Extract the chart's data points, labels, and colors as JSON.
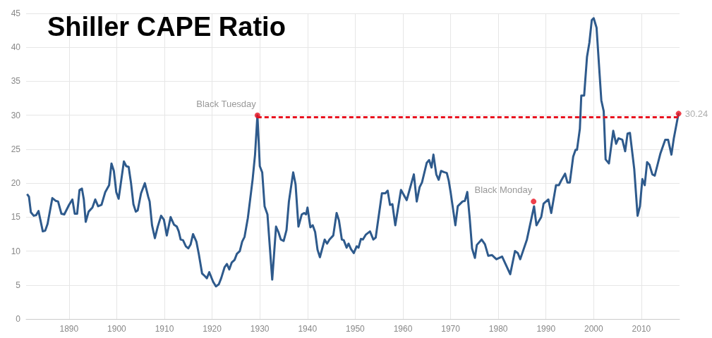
{
  "chart_data": {
    "type": "line",
    "title": "Shiller CAPE Ratio",
    "xlim": [
      1881,
      2018
    ],
    "xticks": [
      1890,
      1900,
      1910,
      1920,
      1930,
      1940,
      1950,
      1960,
      1970,
      1980,
      1990,
      2000,
      2010
    ],
    "ylim": [
      0,
      45
    ],
    "yticks": [
      0,
      5,
      10,
      15,
      20,
      25,
      30,
      35,
      40,
      45
    ],
    "grid": true,
    "annotations": [
      {
        "text": "Black Tuesday",
        "x": 1929.5,
        "y": 30.0
      },
      {
        "text": "Black Monday",
        "x": 1987.4,
        "y": 17.3
      }
    ],
    "series": [
      {
        "color": "#2e5a8c",
        "marker": "none",
        "line_style": "solid",
        "x": [
          1881.2,
          1881.6,
          1882.0,
          1882.6,
          1883.1,
          1883.6,
          1884.5,
          1885.0,
          1885.5,
          1886.5,
          1887.2,
          1887.7,
          1888.4,
          1889.0,
          1890.0,
          1890.7,
          1891.2,
          1891.7,
          1892.2,
          1892.7,
          1893.1,
          1893.5,
          1894.1,
          1894.9,
          1895.5,
          1896.1,
          1896.8,
          1897.6,
          1898.4,
          1898.9,
          1899.4,
          1899.9,
          1900.4,
          1901.0,
          1901.5,
          1902.0,
          1902.5,
          1903.0,
          1903.5,
          1904.0,
          1904.4,
          1905.1,
          1905.9,
          1906.6,
          1906.9,
          1907.4,
          1908.0,
          1908.6,
          1909.3,
          1909.9,
          1910.5,
          1911.3,
          1912.0,
          1912.6,
          1913.0,
          1913.4,
          1913.9,
          1914.5,
          1915.0,
          1915.5,
          1916.0,
          1916.7,
          1917.2,
          1917.9,
          1918.5,
          1918.9,
          1919.4,
          1920.2,
          1920.8,
          1921.4,
          1921.9,
          1922.6,
          1923.1,
          1923.6,
          1924.1,
          1924.7,
          1925.2,
          1925.8,
          1926.3,
          1926.8,
          1927.5,
          1928.5,
          1929.0,
          1929.5,
          1930.0,
          1930.5,
          1931.0,
          1931.6,
          1932.6,
          1933.4,
          1933.9,
          1934.4,
          1935.0,
          1935.6,
          1936.1,
          1937.0,
          1937.5,
          1938.1,
          1938.8,
          1939.3,
          1939.7,
          1940.0,
          1940.6,
          1941.1,
          1941.6,
          1942.1,
          1942.6,
          1943.6,
          1944.1,
          1944.6,
          1945.4,
          1946.1,
          1946.6,
          1947.2,
          1947.6,
          1948.2,
          1948.6,
          1949.1,
          1949.7,
          1950.3,
          1950.7,
          1951.2,
          1951.6,
          1952.2,
          1953.1,
          1953.8,
          1954.3,
          1955.6,
          1956.3,
          1956.8,
          1957.3,
          1957.8,
          1958.4,
          1959.6,
          1960.8,
          1962.3,
          1962.9,
          1963.5,
          1964.0,
          1965.0,
          1965.5,
          1966.0,
          1966.4,
          1967.0,
          1967.5,
          1968.0,
          1968.7,
          1969.2,
          1969.6,
          1970.0,
          1971.0,
          1971.5,
          1972.5,
          1973.0,
          1973.5,
          1974.0,
          1974.5,
          1975.1,
          1975.5,
          1976.5,
          1977.2,
          1977.9,
          1978.7,
          1979.6,
          1980.8,
          1982.5,
          1983.5,
          1984.1,
          1984.6,
          1986.0,
          1987.5,
          1988.0,
          1989.0,
          1989.5,
          1990.5,
          1991.1,
          1992.1,
          1992.7,
          1993.2,
          1994.0,
          1994.5,
          1995.0,
          1995.7,
          1996.2,
          1996.5,
          1997.1,
          1997.4,
          1998.0,
          1998.6,
          1999.1,
          1999.6,
          2000.0,
          2000.6,
          2001.6,
          2002.1,
          2002.5,
          2003.2,
          2004.1,
          2004.7,
          2005.2,
          2006.0,
          2006.6,
          2007.1,
          2007.6,
          2008.5,
          2009.2,
          2009.7,
          2010.2,
          2010.7,
          2011.2,
          2011.7,
          2012.3,
          2012.8,
          2014.0,
          2015.0,
          2015.6,
          2016.3,
          2016.8,
          2017.8
        ],
        "values": [
          18.4,
          18.0,
          15.7,
          15.2,
          15.3,
          15.9,
          12.9,
          13.0,
          14.0,
          17.8,
          17.4,
          17.3,
          15.5,
          15.4,
          16.8,
          17.6,
          15.5,
          15.5,
          19.0,
          19.2,
          17.6,
          14.3,
          15.8,
          16.4,
          17.6,
          16.6,
          16.8,
          18.7,
          19.7,
          22.9,
          21.8,
          18.7,
          17.7,
          20.7,
          23.2,
          22.5,
          22.4,
          20.0,
          16.9,
          15.8,
          16.0,
          18.5,
          20.0,
          18.0,
          17.3,
          13.8,
          11.9,
          13.6,
          15.2,
          14.6,
          12.3,
          15.0,
          13.9,
          13.6,
          12.9,
          11.7,
          11.6,
          10.7,
          10.4,
          11.0,
          12.5,
          11.4,
          9.6,
          6.7,
          6.3,
          6.0,
          6.9,
          5.5,
          4.8,
          5.1,
          6.0,
          7.6,
          8.1,
          7.3,
          8.3,
          8.7,
          9.6,
          10.0,
          11.4,
          12.1,
          14.9,
          20.6,
          24.2,
          30.0,
          22.5,
          21.6,
          16.6,
          15.4,
          5.8,
          13.6,
          12.8,
          11.7,
          11.5,
          13.1,
          17.3,
          21.6,
          19.8,
          13.6,
          15.4,
          15.6,
          15.4,
          16.4,
          13.5,
          13.8,
          12.8,
          10.2,
          9.1,
          11.7,
          11.1,
          11.7,
          12.3,
          15.6,
          14.5,
          11.7,
          11.6,
          10.5,
          11.1,
          10.3,
          9.7,
          10.7,
          10.5,
          11.8,
          11.7,
          12.4,
          12.9,
          11.7,
          12.0,
          18.5,
          18.5,
          18.9,
          16.8,
          16.9,
          13.8,
          19.0,
          17.5,
          21.3,
          17.3,
          19.4,
          20.1,
          23.0,
          23.4,
          22.3,
          24.2,
          21.3,
          20.5,
          21.8,
          21.6,
          21.5,
          20.4,
          18.7,
          13.8,
          16.6,
          17.3,
          17.4,
          18.7,
          14.9,
          10.4,
          9.0,
          10.9,
          11.7,
          11.0,
          9.3,
          9.4,
          8.8,
          9.2,
          6.6,
          10.0,
          9.7,
          8.8,
          11.7,
          16.6,
          13.8,
          15.0,
          17.0,
          17.6,
          15.6,
          19.7,
          19.7,
          20.4,
          21.4,
          20.1,
          20.1,
          23.9,
          24.9,
          24.9,
          28.0,
          32.9,
          32.9,
          38.6,
          40.7,
          44.0,
          44.3,
          42.9,
          32.2,
          30.6,
          23.5,
          22.9,
          27.7,
          25.8,
          26.6,
          26.4,
          24.7,
          27.3,
          27.4,
          22.1,
          15.2,
          16.6,
          20.6,
          19.7,
          23.1,
          22.7,
          21.3,
          21.1,
          24.4,
          26.4,
          26.4,
          24.2,
          26.6,
          30.3
        ]
      },
      {
        "type": "line",
        "color": "#e8101e",
        "marker": "none",
        "line_style": "dashed",
        "x": [
          1929.5,
          2018
        ],
        "values": [
          29.7,
          29.7
        ]
      },
      {
        "type": "scatter",
        "color": "#e8101e",
        "marker": "circle",
        "x": [
          1929.5,
          1987.4,
          2017.8
        ],
        "values": [
          30.0,
          17.3,
          30.24
        ],
        "value_labels": [
          null,
          null,
          "30.24"
        ]
      }
    ]
  }
}
